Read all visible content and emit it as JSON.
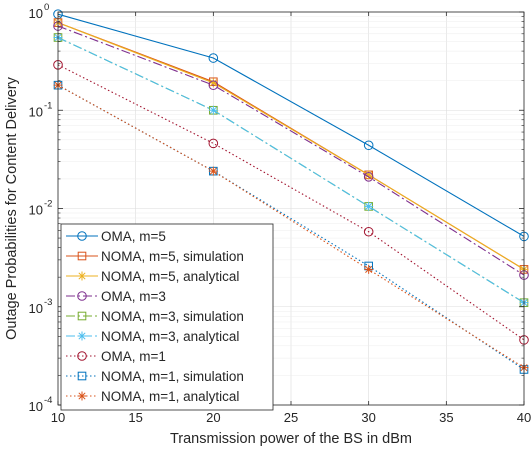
{
  "chart_data": {
    "type": "line",
    "xlabel": "Transmission power of the BS in dBm",
    "ylabel": "Outage Probabilities for Content Delivery",
    "xlim": [
      10,
      40
    ],
    "ylim": [
      0.0001,
      1
    ],
    "yscale": "log",
    "grid": true,
    "legend_position": "bottom-left",
    "x_ticks": [
      {
        "value": 10,
        "label": "10"
      },
      {
        "value": 15,
        "label": "15"
      },
      {
        "value": 20,
        "label": "20"
      },
      {
        "value": 25,
        "label": "25"
      },
      {
        "value": 30,
        "label": "30"
      },
      {
        "value": 35,
        "label": "35"
      },
      {
        "value": 40,
        "label": "40"
      }
    ],
    "y_ticks": [
      {
        "value": 1,
        "base": "10",
        "exp": "0"
      },
      {
        "value": 0.1,
        "base": "10",
        "exp": "-1"
      },
      {
        "value": 0.01,
        "base": "10",
        "exp": "-2"
      },
      {
        "value": 0.001,
        "base": "10",
        "exp": "-3"
      },
      {
        "value": 0.0001,
        "base": "10",
        "exp": "-4"
      }
    ],
    "x": [
      10,
      20,
      30,
      40
    ],
    "series": [
      {
        "name": "OMA, m=5",
        "values": [
          0.95,
          0.34,
          0.044,
          0.0052
        ],
        "color": "#0072BD",
        "dash": "solid",
        "marker": "circle"
      },
      {
        "name": "NOMA, m=5, simulation",
        "values": [
          0.78,
          0.195,
          0.022,
          0.0024
        ],
        "color": "#D95319",
        "dash": "solid",
        "marker": "square"
      },
      {
        "name": "NOMA, m=5, analytical",
        "values": [
          0.78,
          0.19,
          0.022,
          0.0024
        ],
        "color": "#EDB120",
        "dash": "solid",
        "marker": "asterisk"
      },
      {
        "name": "OMA, m=3",
        "values": [
          0.72,
          0.18,
          0.021,
          0.0021
        ],
        "color": "#7E2F8E",
        "dash": "dashdot",
        "marker": "circle"
      },
      {
        "name": "NOMA, m=3, simulation",
        "values": [
          0.55,
          0.1,
          0.0105,
          0.0011
        ],
        "color": "#77AC30",
        "dash": "dashdot",
        "marker": "square"
      },
      {
        "name": "NOMA, m=3, analytical",
        "values": [
          0.55,
          0.1,
          0.0105,
          0.0011
        ],
        "color": "#4DBEEE",
        "dash": "dashdot",
        "marker": "asterisk"
      },
      {
        "name": "OMA, m=1",
        "values": [
          0.29,
          0.046,
          0.0058,
          0.00046
        ],
        "color": "#A2142F",
        "dash": "dotted",
        "marker": "circle"
      },
      {
        "name": "NOMA, m=1, simulation",
        "values": [
          0.18,
          0.024,
          0.0026,
          0.00023
        ],
        "color": "#0072BD",
        "dash": "dotted",
        "marker": "square"
      },
      {
        "name": "NOMA, m=1, analytical",
        "values": [
          0.18,
          0.024,
          0.0024,
          0.00024
        ],
        "color": "#D95319",
        "dash": "dotted",
        "marker": "asterisk"
      }
    ]
  }
}
